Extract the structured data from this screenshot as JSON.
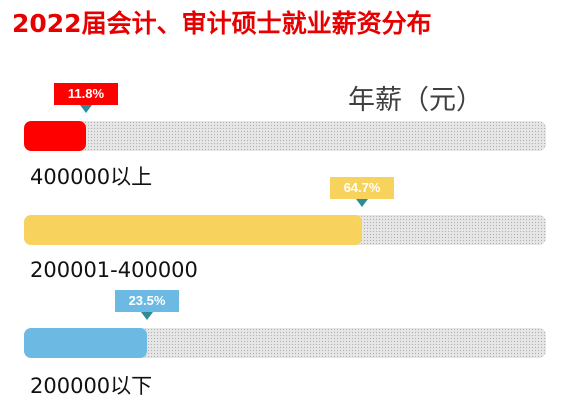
{
  "title": "2022届会计、审计硕士就业薪资分布",
  "unit_label": "年薪（元）",
  "chart_data": {
    "type": "bar",
    "orientation": "horizontal",
    "categories": [
      "400000以上",
      "200001-400000",
      "200000以下"
    ],
    "values": [
      11.8,
      64.7,
      23.5
    ],
    "value_labels": [
      "11.8%",
      "64.7%",
      "23.5%"
    ],
    "colors": [
      "#ff0000",
      "#f7d25c",
      "#6cb9e3"
    ],
    "xlim": [
      0,
      100
    ],
    "grid": false,
    "legend": "none"
  }
}
